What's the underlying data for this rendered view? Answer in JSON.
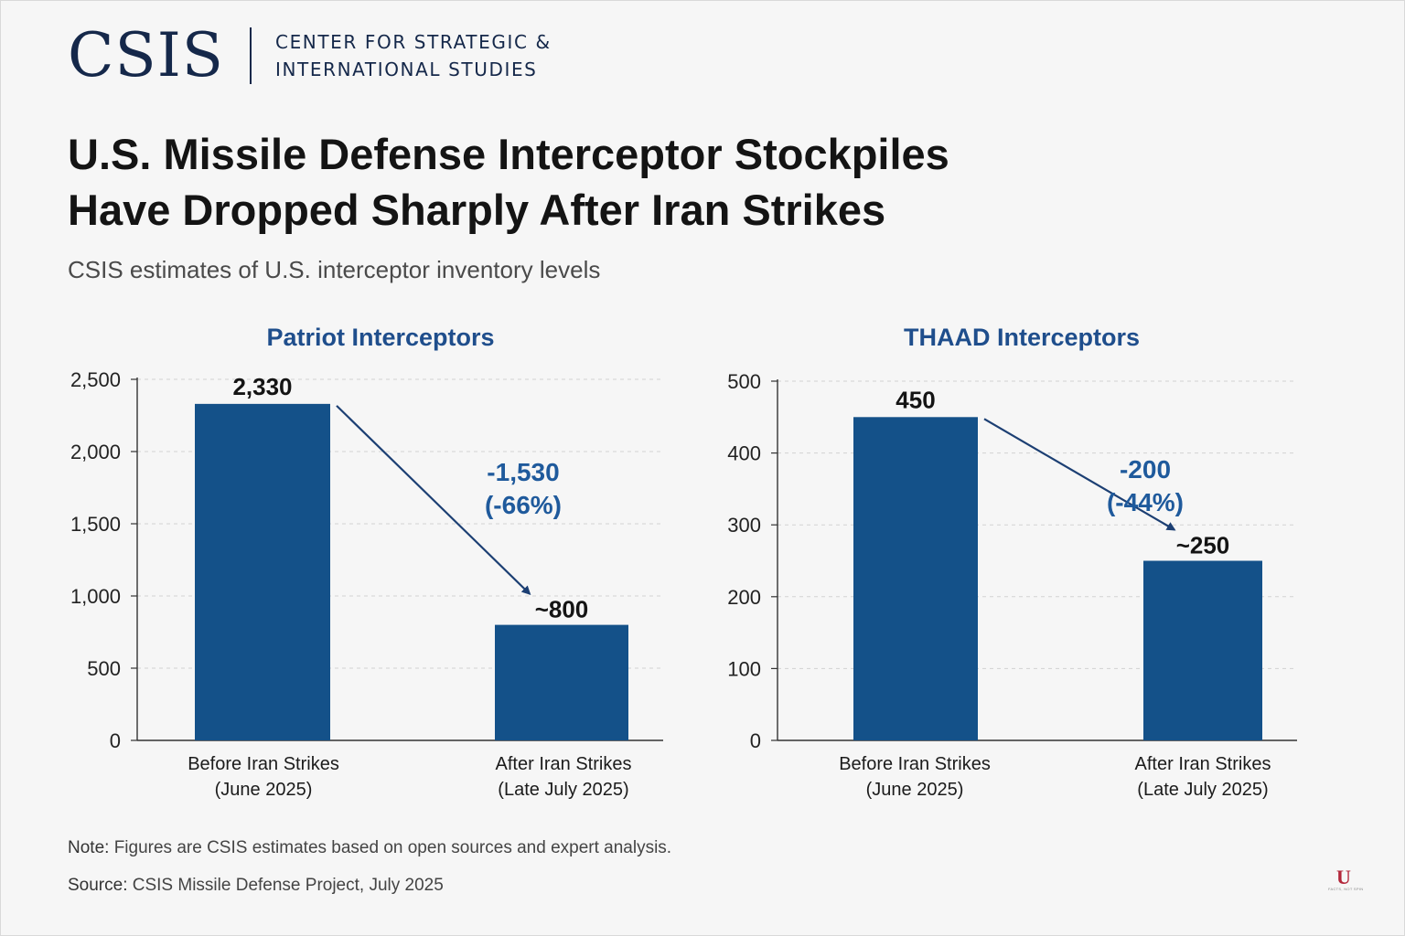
{
  "header": {
    "logo_mark": "CSIS",
    "logo_line1": "CENTER FOR STRATEGIC &",
    "logo_line2": "INTERNATIONAL STUDIES"
  },
  "title_line1": "U.S. Missile Defense Interceptor Stockpiles",
  "title_line2": "Have Dropped Sharply After Iran Strikes",
  "subtitle": "CSIS estimates of U.S. interceptor inventory levels",
  "chart_data": [
    {
      "type": "bar",
      "title": "Patriot Interceptors",
      "categories": [
        [
          "Before Iran Strikes",
          "(June 2025)"
        ],
        [
          "After Iran Strikes",
          "(Late July 2025)"
        ]
      ],
      "values": [
        2330,
        800
      ],
      "value_labels": [
        "2,330",
        "~800"
      ],
      "ylim": [
        0,
        2500
      ],
      "yticks": [
        0,
        500,
        1000,
        1500,
        2000,
        2500
      ],
      "ytick_labels": [
        "0",
        "500",
        "1,000",
        "1,500",
        "2,000",
        "2,500"
      ],
      "annotation": [
        "-1,530",
        "(-66%)"
      ],
      "grid": true,
      "bar_color": "#145189",
      "arrow_color": "#1c3f73"
    },
    {
      "type": "bar",
      "title": "THAAD Interceptors",
      "categories": [
        [
          "Before Iran Strikes",
          "(June 2025)"
        ],
        [
          "After Iran Strikes",
          "(Late July 2025)"
        ]
      ],
      "values": [
        450,
        250
      ],
      "value_labels": [
        "450",
        "~250"
      ],
      "ylim": [
        0,
        500
      ],
      "yticks": [
        0,
        100,
        200,
        300,
        400,
        500
      ],
      "ytick_labels": [
        "0",
        "100",
        "200",
        "300",
        "400",
        "500"
      ],
      "annotation": [
        "-200",
        "(-44%)"
      ],
      "grid": true,
      "bar_color": "#145189",
      "arrow_color": "#1c3f73"
    }
  ],
  "note_label": "Note:",
  "note_text": " Figures are CSIS estimates based on open sources and expert analysis.",
  "source_label": "Source:",
  "source_text": " CSIS Missile Defense Project, July 2025",
  "badge": {
    "letter": "U",
    "tagline": "FACTS, NOT SPIN"
  }
}
